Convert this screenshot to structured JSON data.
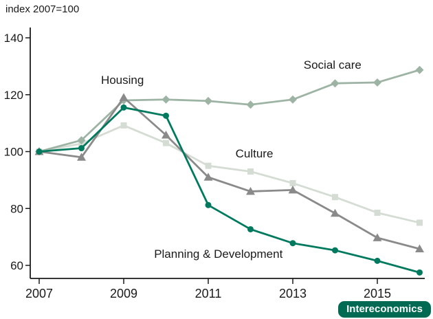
{
  "chart_data": {
    "type": "line",
    "title": "index 2007=100",
    "x": [
      2007,
      2008,
      2009,
      2010,
      2011,
      2012,
      2013,
      2014,
      2015,
      2016
    ],
    "xticks": [
      2007,
      2009,
      2011,
      2013,
      2015
    ],
    "yticks": [
      60,
      80,
      100,
      120,
      140
    ],
    "ylim": [
      60,
      140
    ],
    "grid": false,
    "legend_position": "inline-annotations",
    "series": [
      {
        "name": "Culture",
        "marker": "square",
        "color": "#d4dcd4",
        "values": [
          100,
          102.8,
          109.2,
          103,
          95,
          93,
          88.9,
          84,
          78.5,
          75
        ]
      },
      {
        "name": "Social care",
        "marker": "diamond",
        "color": "#9db4a5",
        "values": [
          100,
          104,
          118,
          118.3,
          117.8,
          116.5,
          118.3,
          124,
          124.3,
          128.7
        ]
      },
      {
        "name": "Housing",
        "marker": "triangle",
        "color": "#8a8a8a",
        "values": [
          100,
          98,
          119,
          105.8,
          91,
          86,
          86.5,
          78.3,
          69.7,
          65.8
        ]
      },
      {
        "name": "Planning & Development",
        "marker": "circle",
        "color": "#007a5e",
        "values": [
          100,
          101.2,
          115.5,
          112.6,
          81.2,
          72.7,
          67.8,
          65.3,
          61.6,
          57.5
        ]
      }
    ],
    "annotations": [
      {
        "text": "Housing",
        "x": 2008.97,
        "y": 125.0
      },
      {
        "text": "Social care",
        "x": 2013.94,
        "y": 130.3
      },
      {
        "text": "Culture",
        "x": 2012.09,
        "y": 99.2
      },
      {
        "text": "Planning & Development",
        "x": 2011.24,
        "y": 63.9
      }
    ]
  },
  "branding": {
    "label": "Intereconomics",
    "badge_color": "#006a52"
  },
  "colors": {
    "axis": "#1a1a1a",
    "text": "#1a1a1a",
    "planning_green": "#007a5e",
    "housing_gray": "#8a8a8a",
    "culture_light_gray": "#d4dcd4",
    "social_sage": "#9db4a5"
  }
}
